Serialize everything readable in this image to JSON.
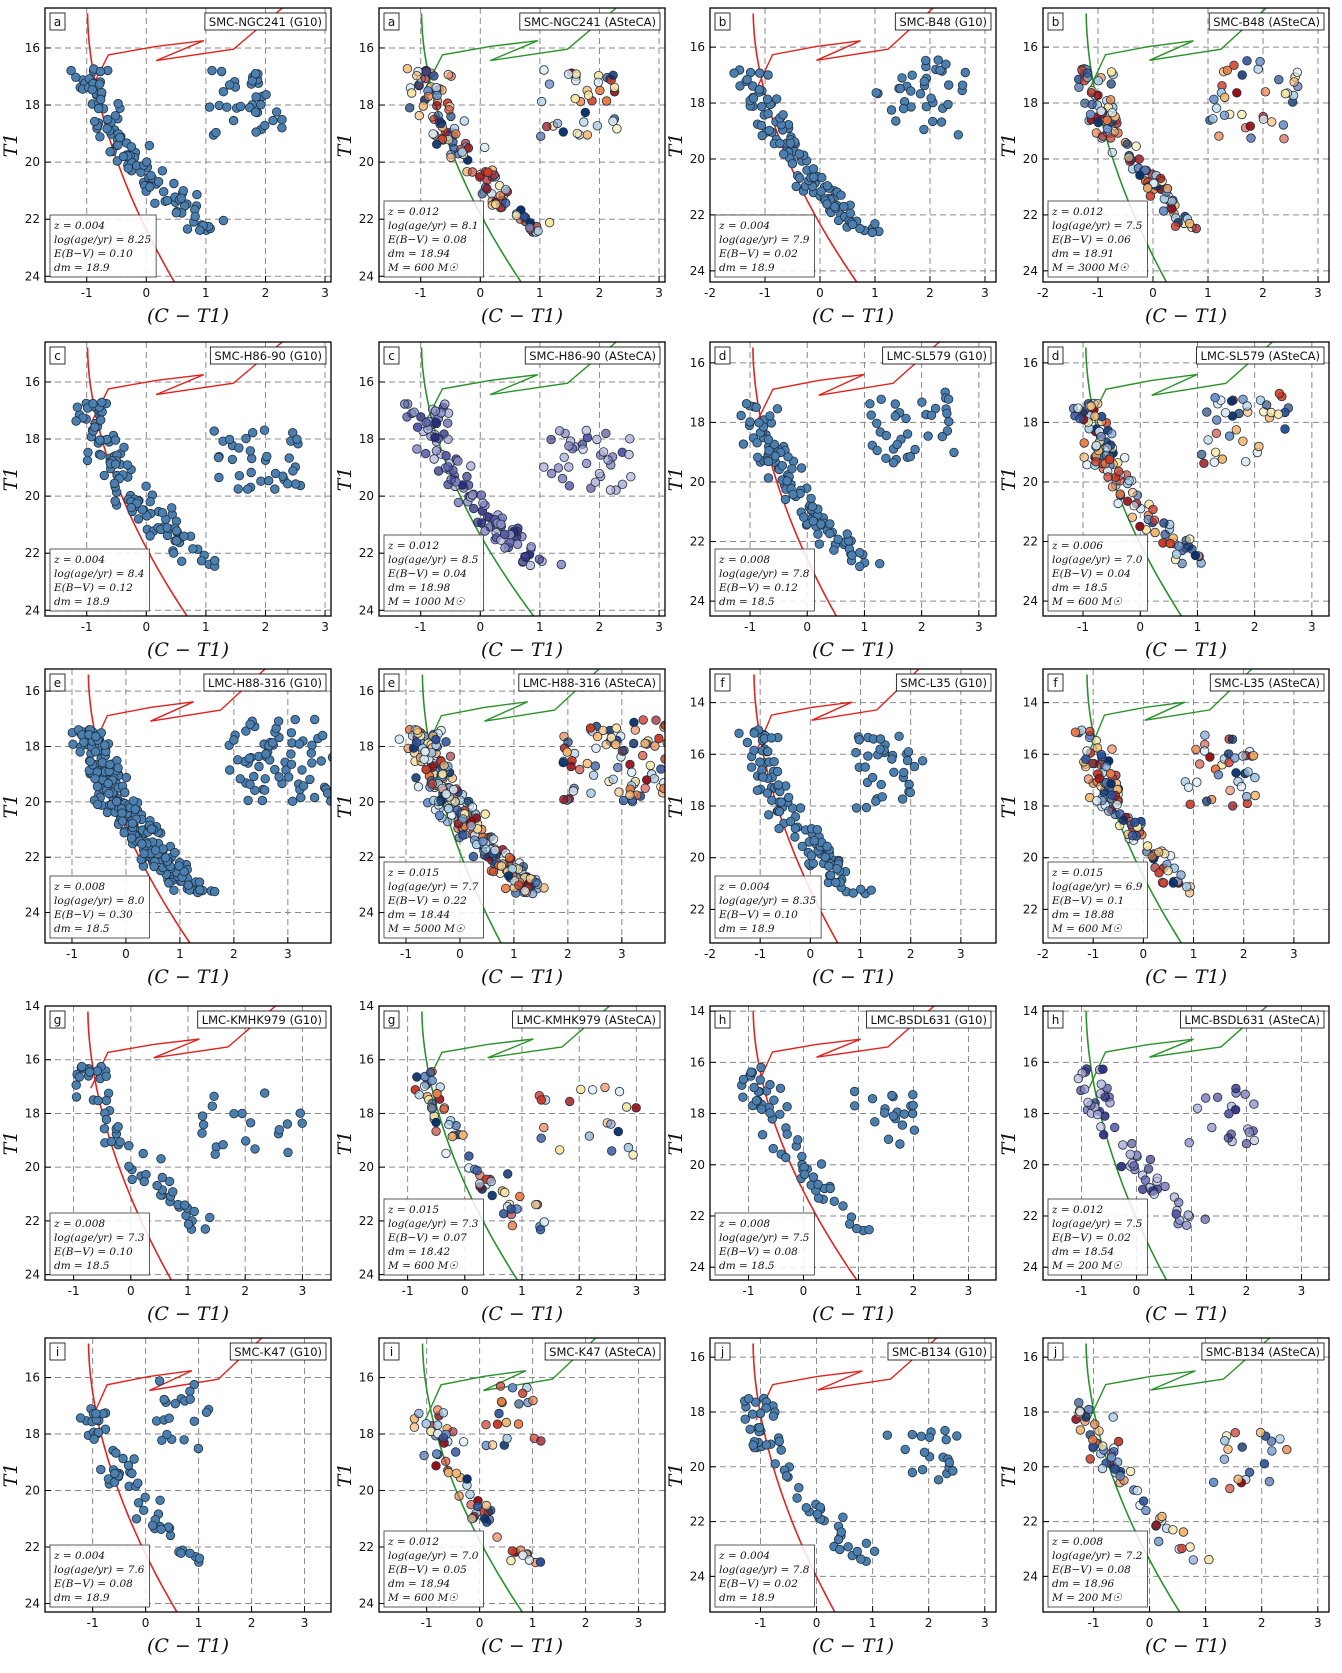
{
  "figure": {
    "xlabel": "(C − T1)",
    "ylabel": "T1"
  },
  "styles": {
    "g10_point_color": "#4a7fb0",
    "g10_isochrone_color": "#e0231e",
    "asteca_isochrone_color": "#2a922a",
    "asteca_palette": [
      "#08306b",
      "#2c4f9a",
      "#6a8fc8",
      "#a9cbe3",
      "#dceaf2",
      "#fbe6a2",
      "#f7b56a",
      "#ec7a3f",
      "#cf3a25",
      "#9a0b12"
    ],
    "purple_palette": [
      "#2b2b80",
      "#5858a8",
      "#8c8cc8",
      "#b9b9de"
    ]
  },
  "chart_data": [
    {
      "id": "p1",
      "type": "scatter",
      "method": "G10",
      "letter": "a",
      "title": "SMC-NGC241 (G10)",
      "xlim": [
        -1.7,
        3.1
      ],
      "ylim": [
        24.2,
        14.6
      ],
      "xticks": [
        -1,
        0,
        1,
        2,
        3
      ],
      "yticks": [
        16,
        18,
        20,
        22,
        24
      ],
      "clump": [
        0.5,
        20.2
      ],
      "redgiant": [
        1.2,
        1.1
      ],
      "params": [
        "z = 0.004",
        "log(age/yr) = 8.25",
        "E(B−V) = 0.10",
        "dm = 18.9"
      ]
    },
    {
      "id": "p2",
      "type": "scatter",
      "method": "ASteCA",
      "letter": "a",
      "title": "SMC-NGC241 (ASteCA)",
      "xlim": [
        -1.7,
        3.1
      ],
      "ylim": [
        24.2,
        14.6
      ],
      "xticks": [
        -1,
        0,
        1,
        2,
        3
      ],
      "yticks": [
        16,
        18,
        20,
        22,
        24
      ],
      "clump": [
        0.5,
        20.2
      ],
      "redgiant": [
        1.2,
        1.1
      ],
      "params": [
        "z = 0.012",
        "log(age/yr) = 8.1",
        "E(B−V) = 0.08",
        "dm = 18.94",
        "M = 600 M☉"
      ]
    },
    {
      "id": "p3",
      "type": "scatter",
      "method": "G10",
      "letter": "b",
      "title": "SMC-B48 (G10)",
      "xlim": [
        -2.0,
        3.2
      ],
      "ylim": [
        24.4,
        14.6
      ],
      "xticks": [
        -2,
        -1,
        0,
        1,
        2,
        3
      ],
      "yticks": [
        16,
        18,
        20,
        22,
        24
      ],
      "clump": [
        0.4,
        20.6
      ],
      "redgiant": [
        1.5,
        1.3
      ],
      "params": [
        "z = 0.004",
        "log(age/yr) = 7.9",
        "E(B−V) = 0.02",
        "dm = 18.9"
      ]
    },
    {
      "id": "p4",
      "type": "scatter",
      "method": "ASteCA",
      "letter": "b",
      "title": "SMC-B48 (ASteCA)",
      "xlim": [
        -2.0,
        3.2
      ],
      "ylim": [
        24.4,
        14.6
      ],
      "xticks": [
        -2,
        -1,
        0,
        1,
        2,
        3
      ],
      "yticks": [
        16,
        18,
        20,
        22,
        24
      ],
      "clump": [
        0.4,
        20.6
      ],
      "redgiant": [
        1.5,
        1.3
      ],
      "params": [
        "z = 0.012",
        "log(age/yr) = 7.5",
        "E(B−V) = 0.06",
        "dm = 18.91",
        "M = 3000 M☉"
      ]
    },
    {
      "id": "p5",
      "type": "scatter",
      "method": "G10",
      "letter": "c",
      "title": "SMC-H86-90 (G10)",
      "xlim": [
        -1.7,
        3.1
      ],
      "ylim": [
        24.2,
        14.6
      ],
      "xticks": [
        -1,
        0,
        1,
        2,
        3
      ],
      "yticks": [
        16,
        18,
        20,
        22,
        24
      ],
      "clump": [
        0.5,
        20.8
      ],
      "redgiant": [
        1.4,
        1.0
      ],
      "params": [
        "z = 0.004",
        "log(age/yr) = 8.4",
        "E(B−V) = 0.12",
        "dm = 18.9"
      ]
    },
    {
      "id": "p6",
      "type": "scatter",
      "method": "ASteCA",
      "letter": "c",
      "title": "SMC-H86-90 (ASteCA)",
      "xlim": [
        -1.7,
        3.1
      ],
      "ylim": [
        24.2,
        14.6
      ],
      "xticks": [
        -1,
        0,
        1,
        2,
        3
      ],
      "yticks": [
        16,
        18,
        20,
        22,
        24
      ],
      "clump": [
        0.5,
        20.8
      ],
      "redgiant": [
        1.4,
        1.0
      ],
      "params": [
        "z = 0.012",
        "log(age/yr) = 8.5",
        "E(B−V) = 0.04",
        "dm = 18.98",
        "M = 1000 M☉"
      ]
    },
    {
      "id": "p7",
      "type": "scatter",
      "method": "G10",
      "letter": "d",
      "title": "LMC-SL579 (G10)",
      "xlim": [
        -1.7,
        3.3
      ],
      "ylim": [
        24.5,
        15.3
      ],
      "xticks": [
        -1,
        0,
        1,
        2,
        3
      ],
      "yticks": [
        16,
        18,
        20,
        22,
        24
      ],
      "clump": [
        0.5,
        20.5
      ],
      "redgiant": [
        1.4,
        1.1
      ],
      "params": [
        "z = 0.008",
        "log(age/yr) = 7.8",
        "E(B−V) = 0.12",
        "dm = 18.5"
      ]
    },
    {
      "id": "p8",
      "type": "scatter",
      "method": "ASteCA",
      "letter": "d",
      "title": "LMC-SL579 (ASteCA)",
      "xlim": [
        -1.7,
        3.3
      ],
      "ylim": [
        24.5,
        15.3
      ],
      "xticks": [
        -1,
        0,
        1,
        2,
        3
      ],
      "yticks": [
        16,
        18,
        20,
        22,
        24
      ],
      "clump": [
        0.5,
        20.5
      ],
      "redgiant": [
        1.4,
        1.1
      ],
      "params": [
        "z = 0.006",
        "log(age/yr) = 7.0",
        "E(B−V) = 0.04",
        "dm = 18.5",
        "M = 600 M☉"
      ]
    },
    {
      "id": "p9",
      "type": "scatter",
      "method": "G10",
      "letter": "e",
      "title": "LMC-H88-316 (G10)",
      "xlim": [
        -1.5,
        3.8
      ],
      "ylim": [
        25.1,
        15.2
      ],
      "xticks": [
        -1,
        0,
        1,
        2,
        3
      ],
      "yticks": [
        16,
        18,
        20,
        22,
        24
      ],
      "clump": [
        1.1,
        21.5
      ],
      "redgiant": [
        2.0,
        1.4
      ],
      "params": [
        "z = 0.008",
        "log(age/yr) = 8.0",
        "E(B−V) = 0.30",
        "dm = 18.5"
      ]
    },
    {
      "id": "p10",
      "type": "scatter",
      "method": "ASteCA",
      "letter": "e",
      "title": "LMC-H88-316 (ASteCA)",
      "xlim": [
        -1.5,
        3.8
      ],
      "ylim": [
        25.1,
        15.2
      ],
      "xticks": [
        -1,
        0,
        1,
        2,
        3
      ],
      "yticks": [
        16,
        18,
        20,
        22,
        24
      ],
      "clump": [
        1.1,
        21.5
      ],
      "redgiant": [
        2.0,
        1.4
      ],
      "params": [
        "z = 0.015",
        "log(age/yr) = 7.7",
        "E(B−V) = 0.22",
        "dm = 18.44",
        "M = 5000 M☉"
      ]
    },
    {
      "id": "p11",
      "type": "scatter",
      "method": "G10",
      "letter": "f",
      "title": "SMC-L35 (G10)",
      "xlim": [
        -2.0,
        3.7
      ],
      "ylim": [
        23.3,
        12.7
      ],
      "xticks": [
        -2,
        -1,
        0,
        1,
        2,
        3
      ],
      "yticks": [
        14,
        16,
        18,
        20,
        22
      ],
      "clump": [
        0.3,
        19.4
      ],
      "redgiant": [
        1.3,
        1.3
      ],
      "params": [
        "z = 0.004",
        "log(age/yr) = 8.35",
        "E(B−V) = 0.10",
        "dm = 18.9"
      ]
    },
    {
      "id": "p12",
      "type": "scatter",
      "method": "ASteCA",
      "letter": "f",
      "title": "SMC-L35 (ASteCA)",
      "xlim": [
        -2.0,
        3.7
      ],
      "ylim": [
        23.3,
        12.7
      ],
      "xticks": [
        -2,
        -1,
        0,
        1,
        2,
        3
      ],
      "yticks": [
        14,
        16,
        18,
        20,
        22
      ],
      "clump": [
        0.3,
        19.4
      ],
      "redgiant": [
        1.3,
        1.3
      ],
      "params": [
        "z = 0.015",
        "log(age/yr) = 6.9",
        "E(B−V) = 0.1",
        "dm = 18.88",
        "M = 600 M☉"
      ]
    },
    {
      "id": "p13",
      "type": "scatter",
      "method": "G10",
      "letter": "g",
      "title": "LMC-KMHK979 (G10)",
      "xlim": [
        -1.5,
        3.5
      ],
      "ylim": [
        24.2,
        14.0
      ],
      "xticks": [
        -1,
        0,
        1,
        2,
        3
      ],
      "yticks": [
        14,
        16,
        18,
        20,
        22,
        24
      ],
      "clump": [
        0.6,
        20.8
      ],
      "redgiant": [
        1.6,
        1.2
      ],
      "params": [
        "z = 0.008",
        "log(age/yr) = 7.3",
        "E(B−V) = 0.10",
        "dm = 18.5"
      ]
    },
    {
      "id": "p14",
      "type": "scatter",
      "method": "ASteCA",
      "letter": "g",
      "title": "LMC-KMHK979 (ASteCA)",
      "xlim": [
        -1.5,
        3.5
      ],
      "ylim": [
        24.2,
        14.0
      ],
      "xticks": [
        -1,
        0,
        1,
        2,
        3
      ],
      "yticks": [
        14,
        16,
        18,
        20,
        22,
        24
      ],
      "clump": [
        0.6,
        20.8
      ],
      "redgiant": [
        1.6,
        1.2
      ],
      "params": [
        "z = 0.015",
        "log(age/yr) = 7.3",
        "E(B−V) = 0.07",
        "dm = 18.42",
        "M = 600 M☉"
      ]
    },
    {
      "id": "p15",
      "type": "scatter",
      "method": "G10",
      "letter": "h",
      "title": "LMC-BSDL631 (G10)",
      "xlim": [
        -1.7,
        3.5
      ],
      "ylim": [
        24.5,
        13.8
      ],
      "xticks": [
        -1,
        0,
        1,
        2,
        3
      ],
      "yticks": [
        14,
        16,
        18,
        20,
        22,
        24
      ],
      "clump": [
        0.4,
        20.2
      ],
      "redgiant": [
        1.2,
        1.0
      ],
      "params": [
        "z = 0.008",
        "log(age/yr) = 7.5",
        "E(B−V) = 0.08",
        "dm = 18.5"
      ]
    },
    {
      "id": "p16",
      "type": "scatter",
      "method": "ASteCA",
      "letter": "h",
      "title": "LMC-BSDL631 (ASteCA)",
      "xlim": [
        -1.7,
        3.5
      ],
      "ylim": [
        24.5,
        13.8
      ],
      "xticks": [
        -1,
        0,
        1,
        2,
        3
      ],
      "yticks": [
        14,
        16,
        18,
        20,
        22,
        24
      ],
      "clump": [
        0.4,
        20.2
      ],
      "redgiant": [
        1.2,
        1.0
      ],
      "params": [
        "z = 0.012",
        "log(age/yr) = 7.5",
        "E(B−V) = 0.02",
        "dm = 18.54",
        "M = 200 M☉"
      ]
    },
    {
      "id": "p17",
      "type": "scatter",
      "method": "G10",
      "letter": "i",
      "title": "SMC-K47 (G10)",
      "xlim": [
        -1.9,
        3.5
      ],
      "ylim": [
        24.3,
        14.6
      ],
      "xticks": [
        -1,
        0,
        1,
        2,
        3
      ],
      "yticks": [
        16,
        18,
        20,
        22,
        24
      ],
      "clump": [
        -0.3,
        19.8
      ],
      "redgiant": [
        1.0,
        1.2
      ],
      "params": [
        "z = 0.004",
        "log(age/yr) = 7.6",
        "E(B−V) = 0.08",
        "dm = 18.9"
      ]
    },
    {
      "id": "p18",
      "type": "scatter",
      "method": "ASteCA",
      "letter": "i",
      "title": "SMC-K47 (ASteCA)",
      "xlim": [
        -1.9,
        3.5
      ],
      "ylim": [
        24.3,
        14.6
      ],
      "xticks": [
        -1,
        0,
        1,
        2,
        3
      ],
      "yticks": [
        16,
        18,
        20,
        22,
        24
      ],
      "clump": [
        -0.3,
        19.8
      ],
      "redgiant": [
        1.0,
        1.2
      ],
      "params": [
        "z = 0.012",
        "log(age/yr) = 7.0",
        "E(B−V) = 0.05",
        "dm = 18.94",
        "M = 600 M☉"
      ]
    },
    {
      "id": "p19",
      "type": "scatter",
      "method": "G10",
      "letter": "j",
      "title": "SMC-B134 (G10)",
      "xlim": [
        -1.9,
        3.2
      ],
      "ylim": [
        25.3,
        15.3
      ],
      "xticks": [
        -1,
        0,
        1,
        2,
        3
      ],
      "yticks": [
        16,
        18,
        20,
        22,
        24
      ],
      "clump": [
        0.6,
        21.8
      ],
      "redgiant": [
        1.3,
        1.0
      ],
      "params": [
        "z = 0.004",
        "log(age/yr) = 7.8",
        "E(B−V) = 0.02",
        "dm = 18.9"
      ]
    },
    {
      "id": "p20",
      "type": "scatter",
      "method": "ASteCA",
      "letter": "j",
      "title": "SMC-B134 (ASteCA)",
      "xlim": [
        -1.9,
        3.2
      ],
      "ylim": [
        25.3,
        15.3
      ],
      "xticks": [
        -1,
        0,
        1,
        2,
        3
      ],
      "yticks": [
        16,
        18,
        20,
        22,
        24
      ],
      "clump": [
        0.6,
        21.8
      ],
      "redgiant": [
        1.3,
        1.0
      ],
      "params": [
        "z = 0.008",
        "log(age/yr) = 7.2",
        "E(B−V) = 0.08",
        "dm = 18.96",
        "M = 200 M☉"
      ]
    }
  ]
}
